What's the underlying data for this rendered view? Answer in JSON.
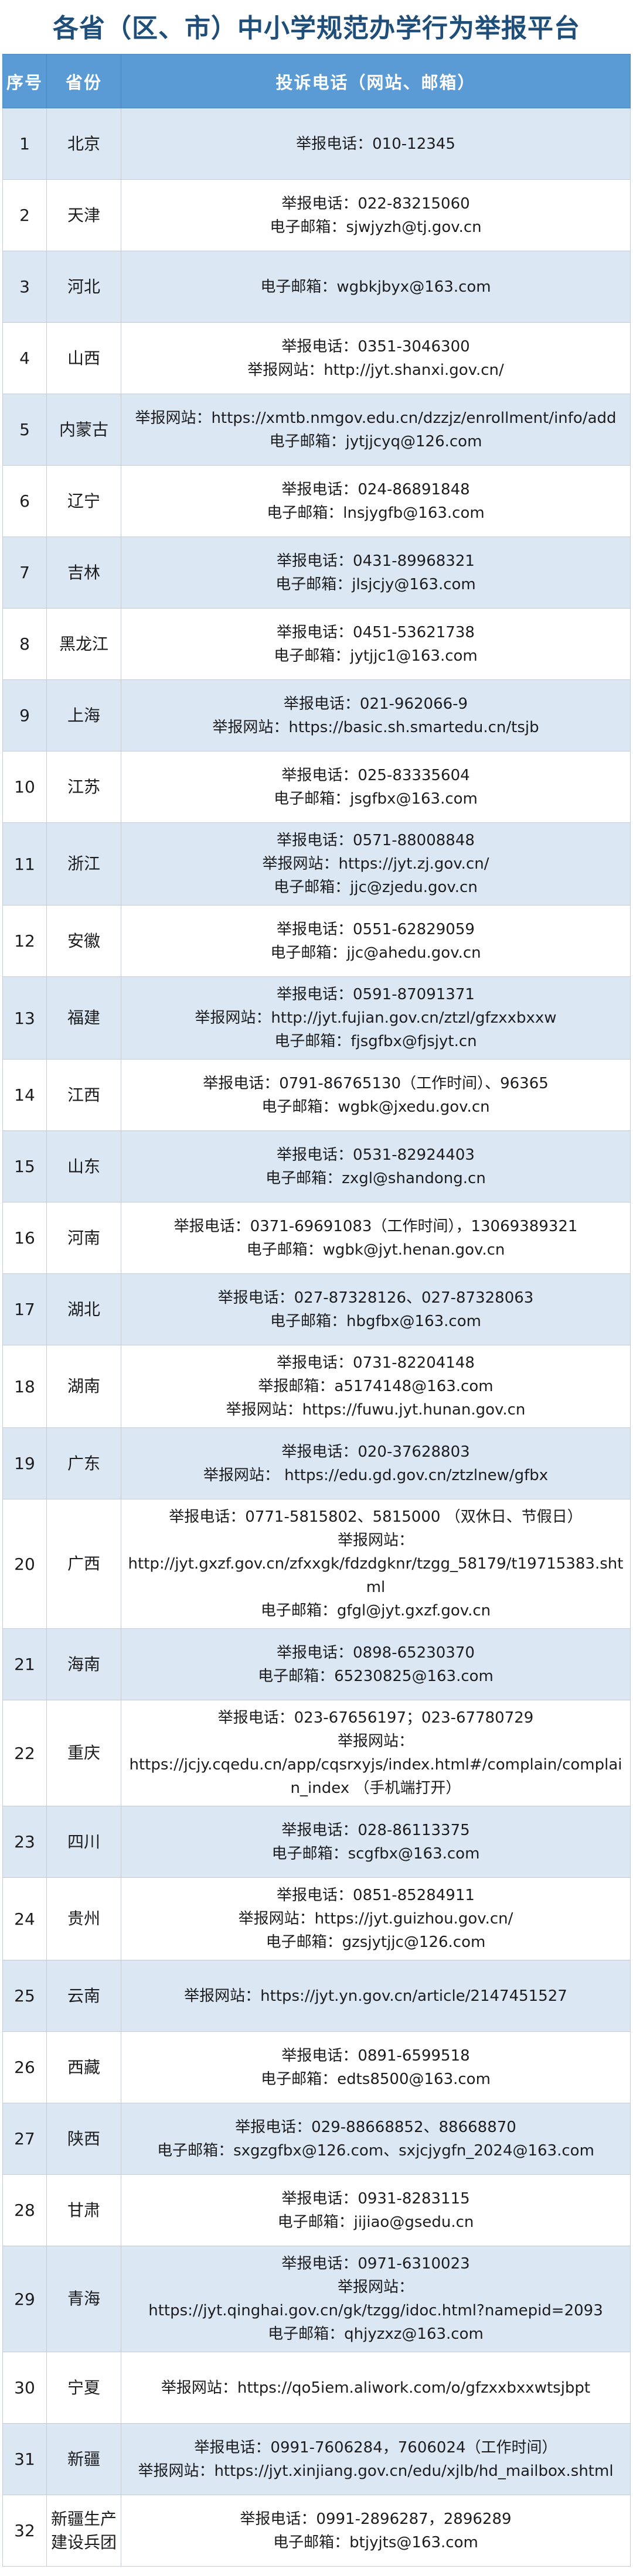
{
  "title": "各省（区、市）中小学规范办学行为举报平台",
  "colors": {
    "title_color": "#1f4e79",
    "header_bg": "#5b9bd5",
    "header_text": "#ffffff",
    "row_alt_bg": "#dbe8f4",
    "row_bg": "#ffffff",
    "body_text": "#1c1c1e"
  },
  "table": {
    "headers": [
      "序号",
      "省份",
      "投诉电话（网站、邮箱）"
    ],
    "rows": [
      {
        "no": "1",
        "province": "北京",
        "lines": [
          "举报电话：010-12345"
        ]
      },
      {
        "no": "2",
        "province": "天津",
        "lines": [
          "举报电话：022-83215060",
          "电子邮箱：sjwjyzh@tj.gov.cn"
        ]
      },
      {
        "no": "3",
        "province": "河北",
        "lines": [
          "电子邮箱：wgbkjbyx@163.com"
        ]
      },
      {
        "no": "4",
        "province": "山西",
        "lines": [
          "举报电话：0351-3046300",
          "举报网站：http://jyt.shanxi.gov.cn/"
        ]
      },
      {
        "no": "5",
        "province": "内蒙古",
        "lines": [
          "举报网站：https://xmtb.nmgov.edu.cn/dzzjz/enrollment/info/add",
          "电子邮箱：jytjjcyq@126.com"
        ]
      },
      {
        "no": "6",
        "province": "辽宁",
        "lines": [
          "举报电话：024-86891848",
          "电子邮箱：lnsjygfb@163.com"
        ]
      },
      {
        "no": "7",
        "province": "吉林",
        "lines": [
          "举报电话：0431-89968321",
          "电子邮箱：jlsjcjy@163.com"
        ]
      },
      {
        "no": "8",
        "province": "黑龙江",
        "lines": [
          "举报电话：0451-53621738",
          "电子邮箱：jytjjc1@163.com"
        ]
      },
      {
        "no": "9",
        "province": "上海",
        "lines": [
          "举报电话：021-962066-9",
          "举报网站：https://basic.sh.smartedu.cn/tsjb"
        ]
      },
      {
        "no": "10",
        "province": "江苏",
        "lines": [
          "举报电话：025-83335604",
          "电子邮箱：jsgfbx@163.com"
        ]
      },
      {
        "no": "11",
        "province": "浙江",
        "lines": [
          "举报电话：0571-88008848",
          "举报网站：https://jyt.zj.gov.cn/",
          "电子邮箱：jjc@zjedu.gov.cn"
        ]
      },
      {
        "no": "12",
        "province": "安徽",
        "lines": [
          "举报电话：0551-62829059",
          "电子邮箱：jjc@ahedu.gov.cn"
        ]
      },
      {
        "no": "13",
        "province": "福建",
        "lines": [
          "举报电话：0591-87091371",
          "举报网站：http://jyt.fujian.gov.cn/ztzl/gfzxxbxxw",
          "电子邮箱：fjsgfbx@fjsjyt.cn"
        ]
      },
      {
        "no": "14",
        "province": "江西",
        "lines": [
          "举报电话：0791-86765130（工作时间）、96365",
          "电子邮箱：wgbk@jxedu.gov.cn"
        ]
      },
      {
        "no": "15",
        "province": "山东",
        "lines": [
          "举报电话：0531-82924403",
          "电子邮箱：zxgl@shandong.cn"
        ]
      },
      {
        "no": "16",
        "province": "河南",
        "lines": [
          "举报电话：0371-69691083（工作时间），13069389321",
          "电子邮箱：wgbk@jyt.henan.gov.cn"
        ]
      },
      {
        "no": "17",
        "province": "湖北",
        "lines": [
          "举报电话：027-87328126、027-87328063",
          "电子邮箱：hbgfbx@163.com"
        ]
      },
      {
        "no": "18",
        "province": "湖南",
        "lines": [
          "举报电话：0731-82204148",
          "举报邮箱：a5174148@163.com",
          "举报网站：https://fuwu.jyt.hunan.gov.cn"
        ]
      },
      {
        "no": "19",
        "province": "广东",
        "lines": [
          "举报电话：020-37628803",
          "举报网站： https://edu.gd.gov.cn/ztzlnew/gfbx"
        ]
      },
      {
        "no": "20",
        "province": "广西",
        "lines": [
          "举报电话：0771-5815802、5815000 （双休日、节假日）",
          "举报网站：",
          "http://jyt.gxzf.gov.cn/zfxxgk/fdzdgknr/tzgg_58179/t19715383.shtml",
          "电子邮箱：gfgl@jyt.gxzf.gov.cn"
        ]
      },
      {
        "no": "21",
        "province": "海南",
        "lines": [
          "举报电话：0898-65230370",
          "电子邮箱：65230825@163.com"
        ]
      },
      {
        "no": "22",
        "province": "重庆",
        "lines": [
          "举报电话：023-67656197；023-67780729",
          "举报网站：",
          "https://jcjy.cqedu.cn/app/cqsrxyjs/index.html#/complain/complain_index （手机端打开）"
        ]
      },
      {
        "no": "23",
        "province": "四川",
        "lines": [
          "举报电话：028-86113375",
          "电子邮箱：scgfbx@163.com"
        ]
      },
      {
        "no": "24",
        "province": "贵州",
        "lines": [
          "举报电话：0851-85284911",
          "举报网站：https://jyt.guizhou.gov.cn/",
          "电子邮箱：gzsjytjjc@126.com"
        ]
      },
      {
        "no": "25",
        "province": "云南",
        "lines": [
          "举报网站：https://jyt.yn.gov.cn/article/2147451527"
        ]
      },
      {
        "no": "26",
        "province": "西藏",
        "lines": [
          "举报电话：0891-6599518",
          "电子邮箱：edts8500@163.com"
        ]
      },
      {
        "no": "27",
        "province": "陕西",
        "lines": [
          "举报电话：029-88668852、88668870",
          "电子邮箱：sxgzgfbx@126.com、sxjcjygfn_2024@163.com"
        ]
      },
      {
        "no": "28",
        "province": "甘肃",
        "lines": [
          "举报电话：0931-8283115",
          "电子邮箱：jijiao@gsedu.cn"
        ]
      },
      {
        "no": "29",
        "province": "青海",
        "lines": [
          "举报电话：0971-6310023",
          "举报网站：",
          "https://jyt.qinghai.gov.cn/gk/tzgg/idoc.html?namepid=2093",
          "电子邮箱：qhjyzxz@163.com"
        ]
      },
      {
        "no": "30",
        "province": "宁夏",
        "lines": [
          "举报网站：https://qo5iem.aliwork.com/o/gfzxxbxxwtsjbpt"
        ]
      },
      {
        "no": "31",
        "province": "新疆",
        "lines": [
          "举报电话：0991-7606284，7606024（工作时间）",
          "举报网站：https://jyt.xinjiang.gov.cn/edu/xjlb/hd_mailbox.shtml"
        ]
      },
      {
        "no": "32",
        "province": "新疆生产建设兵团",
        "lines": [
          "举报电话：0991-2896287，2896289",
          "电子邮箱：btjyjts@163.com"
        ]
      }
    ]
  }
}
